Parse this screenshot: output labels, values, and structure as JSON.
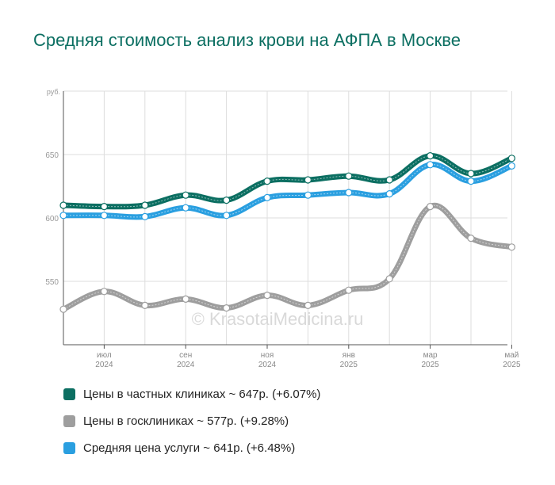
{
  "title": "Средняя стоимость анализ крови на АФПА в Москве",
  "watermark": "© KrasotaiMedicina.ru",
  "chart_data": {
    "type": "line",
    "y_unit_label": "руб.",
    "ylim": [
      500,
      700
    ],
    "yticks": [
      550,
      600,
      650
    ],
    "grid": true,
    "legend_position": "bottom",
    "x": [
      0,
      1,
      2,
      3,
      4,
      5,
      6,
      7,
      8,
      9,
      10,
      11
    ],
    "x_ticks": [
      {
        "i": 1,
        "month": "июл",
        "year": "2024"
      },
      {
        "i": 3,
        "month": "сен",
        "year": "2024"
      },
      {
        "i": 5,
        "month": "ноя",
        "year": "2024"
      },
      {
        "i": 7,
        "month": "янв",
        "year": "2025"
      },
      {
        "i": 9,
        "month": "мар",
        "year": "2025"
      },
      {
        "i": 11,
        "month": "май",
        "year": "2025"
      }
    ],
    "series": [
      {
        "name": "Цены в частных клиниках",
        "color": "#0c6f62",
        "values": [
          610,
          609,
          610,
          618,
          614,
          629,
          630,
          633,
          630,
          649,
          635,
          647
        ]
      },
      {
        "name": "Цены в госклиниках",
        "color": "#9e9e9e",
        "values": [
          528,
          542,
          531,
          536,
          529,
          539,
          531,
          543,
          552,
          609,
          584,
          577
        ]
      },
      {
        "name": "Средняя цена услуги",
        "color": "#2a9fe0",
        "values": [
          602,
          602,
          601,
          608,
          602,
          616,
          618,
          620,
          619,
          642,
          629,
          641
        ]
      }
    ],
    "legend": [
      {
        "label": "Цены в частных клиниках ~ 647р. (+6.07%)",
        "color": "#0c6f62"
      },
      {
        "label": "Цены в госклиниках ~ 577р. (+9.28%)",
        "color": "#9e9e9e"
      },
      {
        "label": "Средняя цена услуги ~ 641р. (+6.48%)",
        "color": "#2a9fe0"
      }
    ]
  }
}
